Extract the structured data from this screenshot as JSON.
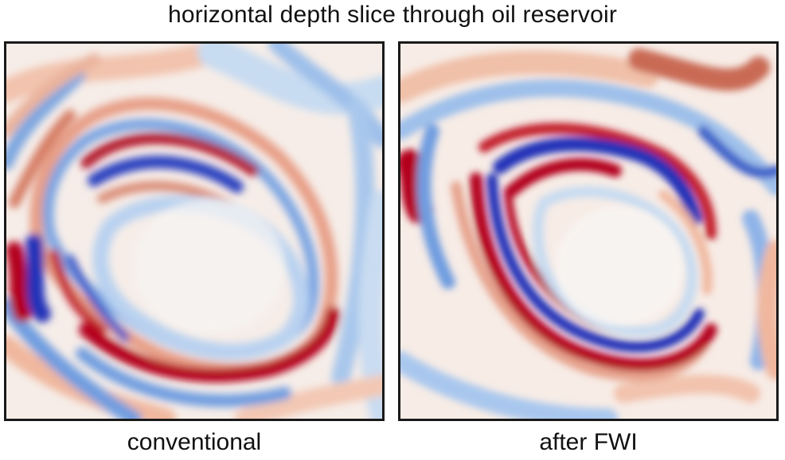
{
  "title": "horizontal depth slice through oil reservoir",
  "panels": [
    {
      "label": "conventional"
    },
    {
      "label": "after FWI"
    }
  ],
  "colors": {
    "deep_red": "#b3001b",
    "red": "#d6604d",
    "light_red": "#f4c0a8",
    "white": "#f7f7f7",
    "light_blue": "#bcd6f0",
    "blue": "#4f86d6",
    "deep_blue": "#2233b8",
    "frame": "#1a1a1a"
  }
}
